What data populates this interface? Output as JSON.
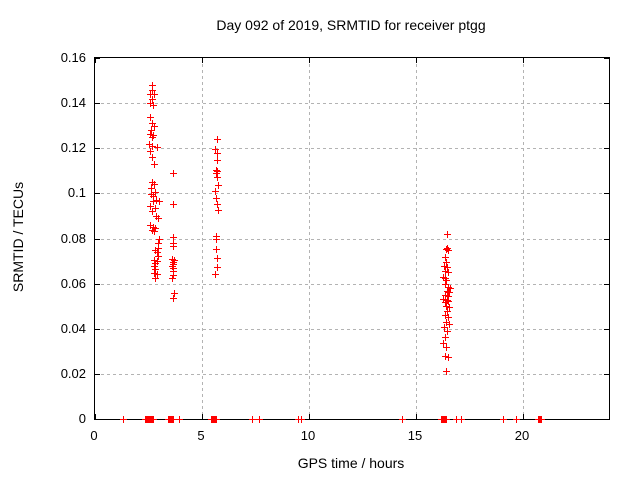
{
  "chart_data": {
    "type": "scatter",
    "title": "Day 092 of 2019, SRMTID for receiver ptgg",
    "xlabel": "GPS time / hours",
    "ylabel": "SRMTID / TECUs",
    "xlim": [
      0,
      24
    ],
    "ylim": [
      0,
      0.16
    ],
    "x_ticks": [
      0,
      5,
      10,
      15,
      20
    ],
    "x_tick_labels": [
      "0",
      "5",
      "10",
      "15",
      "20"
    ],
    "y_ticks": [
      0,
      0.02,
      0.04,
      0.06,
      0.08,
      0.1,
      0.12,
      0.14,
      0.16
    ],
    "y_tick_labels": [
      "0",
      "0.02",
      "0.04",
      "0.06",
      "0.08",
      "0.1",
      "0.12",
      "0.14",
      "0.16"
    ],
    "grid": true,
    "legend_position": "none",
    "marker": "plus",
    "marker_color": "#ff0000",
    "background_color": "#ffffff",
    "series": [
      {
        "name": "SRMTID",
        "points": [
          [
            2.66,
            0.148
          ],
          [
            2.66,
            0.146
          ],
          [
            2.57,
            0.144
          ],
          [
            2.75,
            0.144
          ],
          [
            2.66,
            0.142
          ],
          [
            2.57,
            0.14
          ],
          [
            2.71,
            0.139
          ],
          [
            2.57,
            0.134
          ],
          [
            2.66,
            0.131
          ],
          [
            2.75,
            0.13
          ],
          [
            2.61,
            0.128
          ],
          [
            2.57,
            0.1265
          ],
          [
            2.71,
            0.126
          ],
          [
            2.66,
            0.125
          ],
          [
            2.52,
            0.122
          ],
          [
            2.66,
            0.121
          ],
          [
            2.89,
            0.1205
          ],
          [
            2.57,
            0.119
          ],
          [
            2.66,
            0.116
          ],
          [
            2.75,
            0.113
          ],
          [
            2.66,
            0.105
          ],
          [
            2.75,
            0.104
          ],
          [
            2.61,
            0.1025
          ],
          [
            2.8,
            0.1007
          ],
          [
            2.61,
            0.0998
          ],
          [
            2.71,
            0.099
          ],
          [
            2.85,
            0.0971
          ],
          [
            2.99,
            0.0967
          ],
          [
            2.71,
            0.0965
          ],
          [
            2.57,
            0.0945
          ],
          [
            2.8,
            0.0936
          ],
          [
            2.66,
            0.0922
          ],
          [
            2.85,
            0.09
          ],
          [
            2.94,
            0.0891
          ],
          [
            2.57,
            0.086
          ],
          [
            2.71,
            0.0851
          ],
          [
            2.8,
            0.0847
          ],
          [
            2.66,
            0.0838
          ],
          [
            2.75,
            0.0833
          ],
          [
            2.99,
            0.0798
          ],
          [
            2.94,
            0.078
          ],
          [
            2.94,
            0.0757
          ],
          [
            2.8,
            0.0749
          ],
          [
            2.89,
            0.074
          ],
          [
            2.94,
            0.0722
          ],
          [
            2.75,
            0.0704
          ],
          [
            2.89,
            0.07
          ],
          [
            2.8,
            0.0691
          ],
          [
            2.75,
            0.0677
          ],
          [
            2.8,
            0.0664
          ],
          [
            2.75,
            0.0646
          ],
          [
            2.89,
            0.0642
          ],
          [
            2.8,
            0.0624
          ],
          [
            3.65,
            0.109
          ],
          [
            3.65,
            0.0954
          ],
          [
            3.65,
            0.0807
          ],
          [
            3.65,
            0.078
          ],
          [
            3.65,
            0.0766
          ],
          [
            3.6,
            0.0709
          ],
          [
            3.69,
            0.0704
          ],
          [
            3.65,
            0.0695
          ],
          [
            3.65,
            0.0686
          ],
          [
            3.6,
            0.0677
          ],
          [
            3.65,
            0.0668
          ],
          [
            3.65,
            0.0655
          ],
          [
            3.65,
            0.0637
          ],
          [
            3.6,
            0.0624
          ],
          [
            3.69,
            0.0557
          ],
          [
            3.65,
            0.0535
          ],
          [
            5.71,
            0.1243
          ],
          [
            5.62,
            0.1198
          ],
          [
            5.71,
            0.118
          ],
          [
            5.71,
            0.115
          ],
          [
            5.67,
            0.1105
          ],
          [
            5.71,
            0.1098
          ],
          [
            5.67,
            0.109
          ],
          [
            5.71,
            0.1074
          ],
          [
            5.76,
            0.1038
          ],
          [
            5.62,
            0.1012
          ],
          [
            5.67,
            0.098
          ],
          [
            5.71,
            0.0954
          ],
          [
            5.76,
            0.0927
          ],
          [
            5.67,
            0.0811
          ],
          [
            5.67,
            0.08
          ],
          [
            5.67,
            0.0753
          ],
          [
            5.71,
            0.0713
          ],
          [
            5.71,
            0.0673
          ],
          [
            5.62,
            0.0642
          ],
          [
            16.43,
            0.082
          ],
          [
            16.43,
            0.0757
          ],
          [
            16.39,
            0.0753
          ],
          [
            16.48,
            0.0749
          ],
          [
            16.34,
            0.0718
          ],
          [
            16.39,
            0.0695
          ],
          [
            16.29,
            0.0677
          ],
          [
            16.43,
            0.0673
          ],
          [
            16.34,
            0.0655
          ],
          [
            16.48,
            0.0651
          ],
          [
            16.25,
            0.0628
          ],
          [
            16.34,
            0.0624
          ],
          [
            16.39,
            0.0615
          ],
          [
            16.34,
            0.0597
          ],
          [
            16.48,
            0.0584
          ],
          [
            16.57,
            0.0579
          ],
          [
            16.43,
            0.0566
          ],
          [
            16.52,
            0.0562
          ],
          [
            16.34,
            0.0548
          ],
          [
            16.48,
            0.0544
          ],
          [
            16.25,
            0.053
          ],
          [
            16.43,
            0.0526
          ],
          [
            16.48,
            0.0521
          ],
          [
            16.34,
            0.0517
          ],
          [
            16.39,
            0.0499
          ],
          [
            16.52,
            0.0495
          ],
          [
            16.43,
            0.0477
          ],
          [
            16.34,
            0.0459
          ],
          [
            16.48,
            0.045
          ],
          [
            16.39,
            0.0428
          ],
          [
            16.52,
            0.0423
          ],
          [
            16.29,
            0.0406
          ],
          [
            16.43,
            0.0388
          ],
          [
            16.34,
            0.0365
          ],
          [
            16.25,
            0.0339
          ],
          [
            16.39,
            0.0321
          ],
          [
            16.34,
            0.0281
          ],
          [
            16.48,
            0.0276
          ],
          [
            16.39,
            0.0214
          ],
          [
            1.31,
            0
          ],
          [
            2.34,
            0
          ],
          [
            2.38,
            0
          ],
          [
            2.42,
            0
          ],
          [
            2.46,
            0
          ],
          [
            2.5,
            0
          ],
          [
            2.54,
            0
          ],
          [
            2.58,
            0
          ],
          [
            2.62,
            0
          ],
          [
            2.66,
            0
          ],
          [
            2.7,
            0
          ],
          [
            3.42,
            0
          ],
          [
            3.46,
            0
          ],
          [
            3.5,
            0
          ],
          [
            3.54,
            0
          ],
          [
            3.58,
            0
          ],
          [
            3.62,
            0
          ],
          [
            3.93,
            0
          ],
          [
            5.43,
            0
          ],
          [
            5.47,
            0
          ],
          [
            5.51,
            0
          ],
          [
            5.55,
            0
          ],
          [
            5.59,
            0
          ],
          [
            5.63,
            0
          ],
          [
            7.31,
            0
          ],
          [
            7.68,
            0
          ],
          [
            9.46,
            0
          ],
          [
            9.62,
            0
          ],
          [
            14.33,
            0
          ],
          [
            16.16,
            0
          ],
          [
            16.2,
            0
          ],
          [
            16.24,
            0
          ],
          [
            16.28,
            0
          ],
          [
            16.32,
            0
          ],
          [
            16.36,
            0
          ],
          [
            16.4,
            0
          ],
          [
            16.86,
            0
          ],
          [
            17.1,
            0
          ],
          [
            19.06,
            0
          ],
          [
            19.67,
            0
          ],
          [
            20.68,
            0
          ],
          [
            20.72,
            0
          ],
          [
            20.76,
            0
          ],
          [
            20.8,
            0
          ],
          [
            20.84,
            0
          ]
        ]
      }
    ]
  }
}
